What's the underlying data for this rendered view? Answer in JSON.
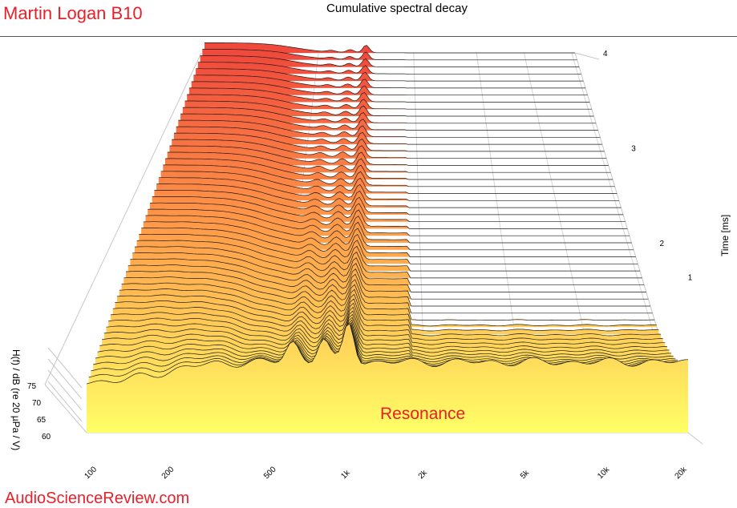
{
  "brand_title": "Martin Logan B10",
  "site_label": "AudioScienceReview.com",
  "colors": {
    "brand_red": "#e8202a",
    "surface_top": "#f04a3c",
    "surface_bottom": "#ffff66"
  },
  "chart_data": {
    "type": "waterfall",
    "title": "Cumulative spectral decay",
    "xlabel": "",
    "ylabel": "H(f) / dB (re 20 µPa / V)",
    "zlabel": "Time [ms]",
    "x_scale": "log",
    "x_ticks": [
      "100",
      "200",
      "500",
      "1k",
      "2k",
      "5k",
      "10k",
      "20k"
    ],
    "x_tick_values": [
      100,
      200,
      500,
      1000,
      2000,
      5000,
      10000,
      20000
    ],
    "y_ticks": [
      "60",
      "65",
      "70",
      "75"
    ],
    "y_tick_values": [
      60,
      65,
      70,
      75
    ],
    "time_ticks": [
      "1",
      "2",
      "3",
      "4"
    ],
    "time_tick_values": [
      1,
      2,
      3,
      4
    ],
    "time_range": [
      0,
      4
    ],
    "annotation": "Resonance",
    "annotation_frequency": 1000,
    "slices": 55
  }
}
